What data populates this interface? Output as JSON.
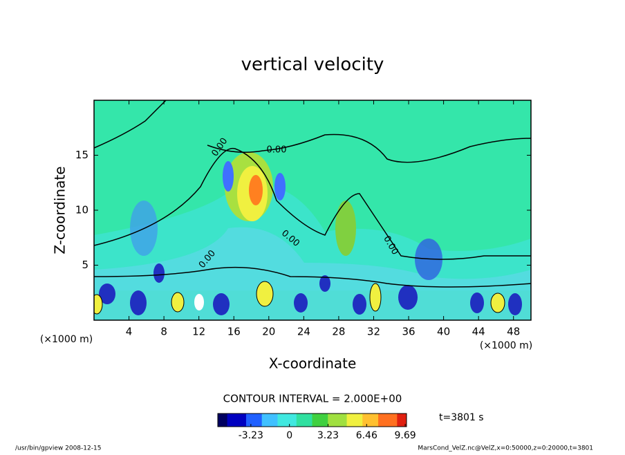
{
  "chart_data": {
    "type": "contour",
    "title": "vertical velocity",
    "x_label": "X-coordinate",
    "y_label": "Z-coordinate",
    "x_unit": "(×1000 m)",
    "y_unit": "(×1000 m)",
    "xlim": [
      0,
      50
    ],
    "xticks": [
      4,
      8,
      12,
      16,
      20,
      24,
      28,
      32,
      36,
      40,
      44,
      48
    ],
    "ylim": [
      0,
      20
    ],
    "yticks": [
      5,
      10,
      15
    ],
    "contour_labels": [
      "0.00",
      "0.00",
      "0.00",
      "0.00",
      "0.00"
    ],
    "contour_interval": "CONTOUR INTERVAL = 2.000E+00",
    "colorbar": {
      "clim": [
        -6,
        9.8
      ],
      "ticks": [
        -3.23,
        0,
        3.23,
        6.46,
        9.69
      ],
      "colormap": [
        "#000060",
        "#0000c0",
        "#2060ff",
        "#40c0ff",
        "#40e8e0",
        "#30e0a0",
        "#40d040",
        "#a0e040",
        "#f0f040",
        "#ffc030",
        "#ff7020",
        "#e02010"
      ]
    },
    "time_label": "t=3801 s",
    "footer_left": "/usr/bin/gpview   2008-12-15",
    "footer_right": "MarsCond_VelZ.nc@VelZ,x=0:50000,z=0:20000,t=3801"
  }
}
